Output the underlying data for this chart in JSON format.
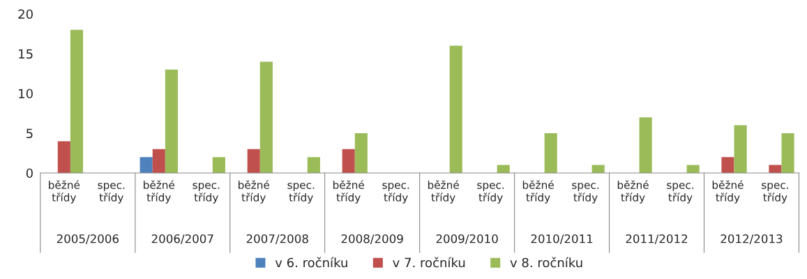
{
  "chart_data": {
    "type": "bar",
    "categories": [
      "běžné třídy",
      "spec. třídy",
      "běžné třídy",
      "spec. třídy",
      "běžné třídy",
      "spec. třídy",
      "běžné třídy",
      "spec. třídy",
      "běžné třídy",
      "spec. třídy",
      "běžné třídy",
      "spec. třídy",
      "běžné třídy",
      "spec. třídy",
      "běžné třídy",
      "spec. třídy"
    ],
    "series": [
      {
        "name": "v 6. ročníku",
        "color": "#4f81bd",
        "values": [
          null,
          null,
          2,
          null,
          null,
          null,
          null,
          null,
          null,
          null,
          null,
          null,
          null,
          null,
          null,
          null
        ]
      },
      {
        "name": "v 7. ročníku",
        "color": "#c0504d",
        "values": [
          4,
          null,
          3,
          null,
          3,
          null,
          3,
          null,
          null,
          null,
          null,
          null,
          null,
          null,
          2,
          1
        ]
      },
      {
        "name": "v 8. ročníku",
        "color": "#9bbb59",
        "values": [
          18,
          null,
          13,
          2,
          14,
          2,
          5,
          null,
          16,
          1,
          5,
          1,
          7,
          1,
          6,
          5
        ]
      }
    ],
    "annotations": [
      "2005/2006",
      "2006/2007",
      "2007/2008",
      "2008/2009",
      "2009/2010",
      "2010/2011",
      "2011/2012",
      "2012/2013"
    ],
    "ylim": [
      0,
      20
    ],
    "yticks": [
      0,
      5,
      10,
      15,
      20
    ],
    "grid": false,
    "legend": "bottom"
  }
}
